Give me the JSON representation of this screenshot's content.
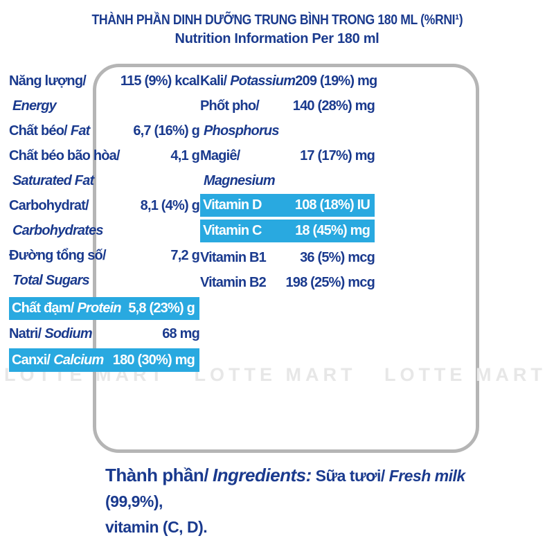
{
  "colors": {
    "navy": "#1a3a8e",
    "cyan": "#29a9e0",
    "panel_border": "#b5b5b5",
    "watermark": "#e7e7e7"
  },
  "watermark": {
    "text": "LOTTE MART   LOTTE MART   LOTTE MART   LOTTE MA"
  },
  "panel": {
    "title_line1": "THÀNH PHẦN DINH DƯỠNG TRUNG BÌNH TRONG 180 ML (%RNI¹)",
    "title_line2": "Nutrition Information Per 180 ml",
    "left_rows": [
      {
        "vn": "Năng lượng/",
        "en": "Energy",
        "value": "115 (9%) kcal"
      },
      {
        "vn": "Chất béo/",
        "en": "Fat",
        "value": "6,7 (16%) g"
      },
      {
        "vn": "Chất béo bão hòa/",
        "en": "Saturated Fat",
        "value": "4,1 g"
      },
      {
        "vn": "Carbohydrat/",
        "en": "Carbohydrates",
        "value": "8,1 (4%) g"
      },
      {
        "vn": "Đường tổng số/",
        "en": "Total Sugars",
        "value": "7,2 g"
      },
      {
        "vn": "Chất đạm/",
        "en": "Protein",
        "value": "5,8 (23%) g"
      },
      {
        "vn": "Natri/",
        "en": "Sodium",
        "value": "68 mg"
      },
      {
        "vn": "Canxi/",
        "en": "Calcium",
        "value": "180 (30%) mg"
      }
    ],
    "right_rows": [
      {
        "vn": "Kali/",
        "en": "Potassium",
        "value": "209 (19%) mg"
      },
      {
        "vn": "Phốt pho/",
        "en": "Phosphorus",
        "value": "140 (28%) mg"
      },
      {
        "vn": "Magiê/",
        "en": "Magnesium",
        "value": "17 (17%) mg"
      },
      {
        "vn": "Vitamin D",
        "en": "",
        "value": "108 (18%) IU"
      },
      {
        "vn": "Vitamin C",
        "en": "",
        "value": "18 (45%) mg"
      },
      {
        "vn": "Vitamin B1",
        "en": "",
        "value": "36 (5%) mcg"
      },
      {
        "vn": "Vitamin B2",
        "en": "",
        "value": "198 (25%) mcg"
      }
    ]
  },
  "ingredients": {
    "label_vn": "Thành phần/",
    "label_en": "Ingredients:",
    "text_vn": "Sữa tươi/",
    "text_en": "Fresh milk",
    "text_tail": "(99,9%),",
    "line2": "vitamin (C, D)."
  }
}
